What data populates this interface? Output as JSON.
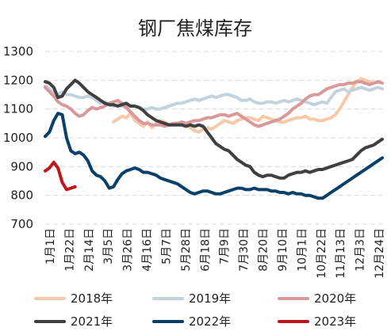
{
  "chart_data": {
    "type": "line",
    "title": "钢厂焦煤库存",
    "xlabel": "",
    "ylabel": "",
    "ylim": [
      700,
      1300
    ],
    "yticks": [
      700,
      800,
      900,
      1000,
      1100,
      1200,
      1300
    ],
    "grid": true,
    "legend_position": "bottom",
    "xtick_labels": [
      "1月1日",
      "1月22日",
      "2月14日",
      "3月5日",
      "3月26日",
      "4月16日",
      "5月7日",
      "5月28日",
      "6月18日",
      "7月9日",
      "7月30日",
      "8月20日",
      "9月10日",
      "10月1日",
      "10月22日",
      "11月13日",
      "12月3日",
      "12月24日"
    ],
    "series": [
      {
        "name": "2018年",
        "color": "#f7c9a9",
        "start_index": 16,
        "values": [
          1055,
          1065,
          1075,
          1070,
          1085,
          1060,
          1050,
          1040,
          1055,
          1035,
          1050,
          1060,
          1055,
          1045,
          1050,
          1050,
          1050,
          1045,
          1035,
          1025,
          1020,
          1030,
          1035,
          1030,
          1040,
          1050,
          1060,
          1055,
          1050,
          1060,
          1065,
          1070,
          1070,
          1065,
          1060,
          1075,
          1070,
          1065,
          1060,
          1055,
          1055,
          1060,
          1065,
          1070,
          1070,
          1075,
          1065,
          1065,
          1060,
          1060,
          1065,
          1070,
          1080,
          1100,
          1125,
          1150,
          1175,
          1195,
          1205,
          1200,
          1195,
          1190,
          1195,
          1190
        ]
      },
      {
        "name": "2019年",
        "color": "#c3d3de",
        "start_index": 0,
        "values": [
          1180,
          1170,
          1155,
          1150,
          1160,
          1150,
          1150,
          1145,
          1140,
          1140,
          1145,
          1140,
          1130,
          1120,
          1125,
          1115,
          1110,
          1115,
          1110,
          1105,
          1110,
          1110,
          1105,
          1100,
          1100,
          1105,
          1100,
          1100,
          1105,
          1110,
          1115,
          1120,
          1120,
          1125,
          1130,
          1135,
          1130,
          1135,
          1140,
          1145,
          1140,
          1145,
          1150,
          1150,
          1145,
          1140,
          1130,
          1130,
          1135,
          1125,
          1120,
          1120,
          1125,
          1125,
          1120,
          1125,
          1130,
          1125,
          1130,
          1135,
          1130,
          1125,
          1120,
          1115,
          1120,
          1125,
          1120,
          1140,
          1160,
          1165,
          1170,
          1160,
          1165,
          1170,
          1175,
          1170,
          1165,
          1170,
          1175,
          1170
        ]
      },
      {
        "name": "2020年",
        "color": "#d9999b",
        "start_index": 0,
        "values": [
          1175,
          1160,
          1145,
          1125,
          1115,
          1110,
          1100,
          1085,
          1075,
          1080,
          1095,
          1105,
          1100,
          1105,
          1110,
          1120,
          1125,
          1130,
          1120,
          1105,
          1090,
          1075,
          1060,
          1050,
          1050,
          1045,
          1045,
          1045,
          1040,
          1045,
          1050,
          1050,
          1055,
          1050,
          1055,
          1060,
          1060,
          1065,
          1070,
          1070,
          1075,
          1080,
          1080,
          1075,
          1080,
          1085,
          1075,
          1065,
          1055,
          1045,
          1040,
          1045,
          1050,
          1055,
          1060,
          1065,
          1075,
          1085,
          1100,
          1110,
          1120,
          1135,
          1145,
          1150,
          1150,
          1160,
          1170,
          1175,
          1180,
          1185,
          1185,
          1190,
          1190,
          1195,
          1195,
          1190,
          1185,
          1190,
          1195,
          1190
        ]
      },
      {
        "name": "2021年",
        "color": "#404040",
        "start_index": 0,
        "values": [
          1195,
          1190,
          1175,
          1140,
          1145,
          1170,
          1185,
          1200,
          1190,
          1175,
          1160,
          1150,
          1140,
          1130,
          1120,
          1115,
          1115,
          1110,
          1115,
          1120,
          1110,
          1110,
          1105,
          1095,
          1080,
          1070,
          1060,
          1055,
          1050,
          1045,
          1045,
          1045,
          1045,
          1040,
          1045,
          1040,
          1045,
          1040,
          1020,
          1000,
          980,
          970,
          960,
          955,
          940,
          925,
          915,
          905,
          900,
          880,
          870,
          865,
          870,
          870,
          865,
          860,
          860,
          870,
          875,
          880,
          880,
          885,
          880,
          885,
          890,
          890,
          895,
          900,
          905,
          910,
          915,
          920,
          925,
          940,
          955,
          965,
          970,
          975,
          985,
          995
        ]
      },
      {
        "name": "2022年",
        "color": "#08406a",
        "start_index": 0,
        "values": [
          1005,
          1020,
          1060,
          1085,
          1080,
          1000,
          955,
          945,
          950,
          940,
          920,
          885,
          870,
          865,
          850,
          825,
          830,
          855,
          875,
          885,
          890,
          895,
          890,
          880,
          880,
          875,
          870,
          860,
          855,
          850,
          845,
          840,
          830,
          820,
          810,
          805,
          810,
          815,
          815,
          810,
          805,
          805,
          810,
          815,
          820,
          825,
          825,
          820,
          820,
          825,
          820,
          820,
          820,
          815,
          815,
          810,
          810,
          805,
          810,
          805,
          805,
          800,
          800,
          795,
          790,
          790,
          800,
          810,
          820,
          830,
          840,
          850,
          860,
          870,
          880,
          890,
          900,
          910,
          920,
          930
        ]
      },
      {
        "name": "2023年",
        "color": "#c0161b",
        "start_index": 0,
        "values": [
          885,
          895,
          915,
          895,
          845,
          820,
          825,
          830
        ]
      }
    ],
    "render_note_excluded": true
  },
  "legend": {
    "items": [
      {
        "label": "2018年",
        "color": "#f7c9a9"
      },
      {
        "label": "2019年",
        "color": "#c3d3de"
      },
      {
        "label": "2020年",
        "color": "#d9999b"
      },
      {
        "label": "2021年",
        "color": "#404040"
      },
      {
        "label": "2022年",
        "color": "#08406a"
      },
      {
        "label": "2023年",
        "color": "#c0161b"
      }
    ]
  }
}
